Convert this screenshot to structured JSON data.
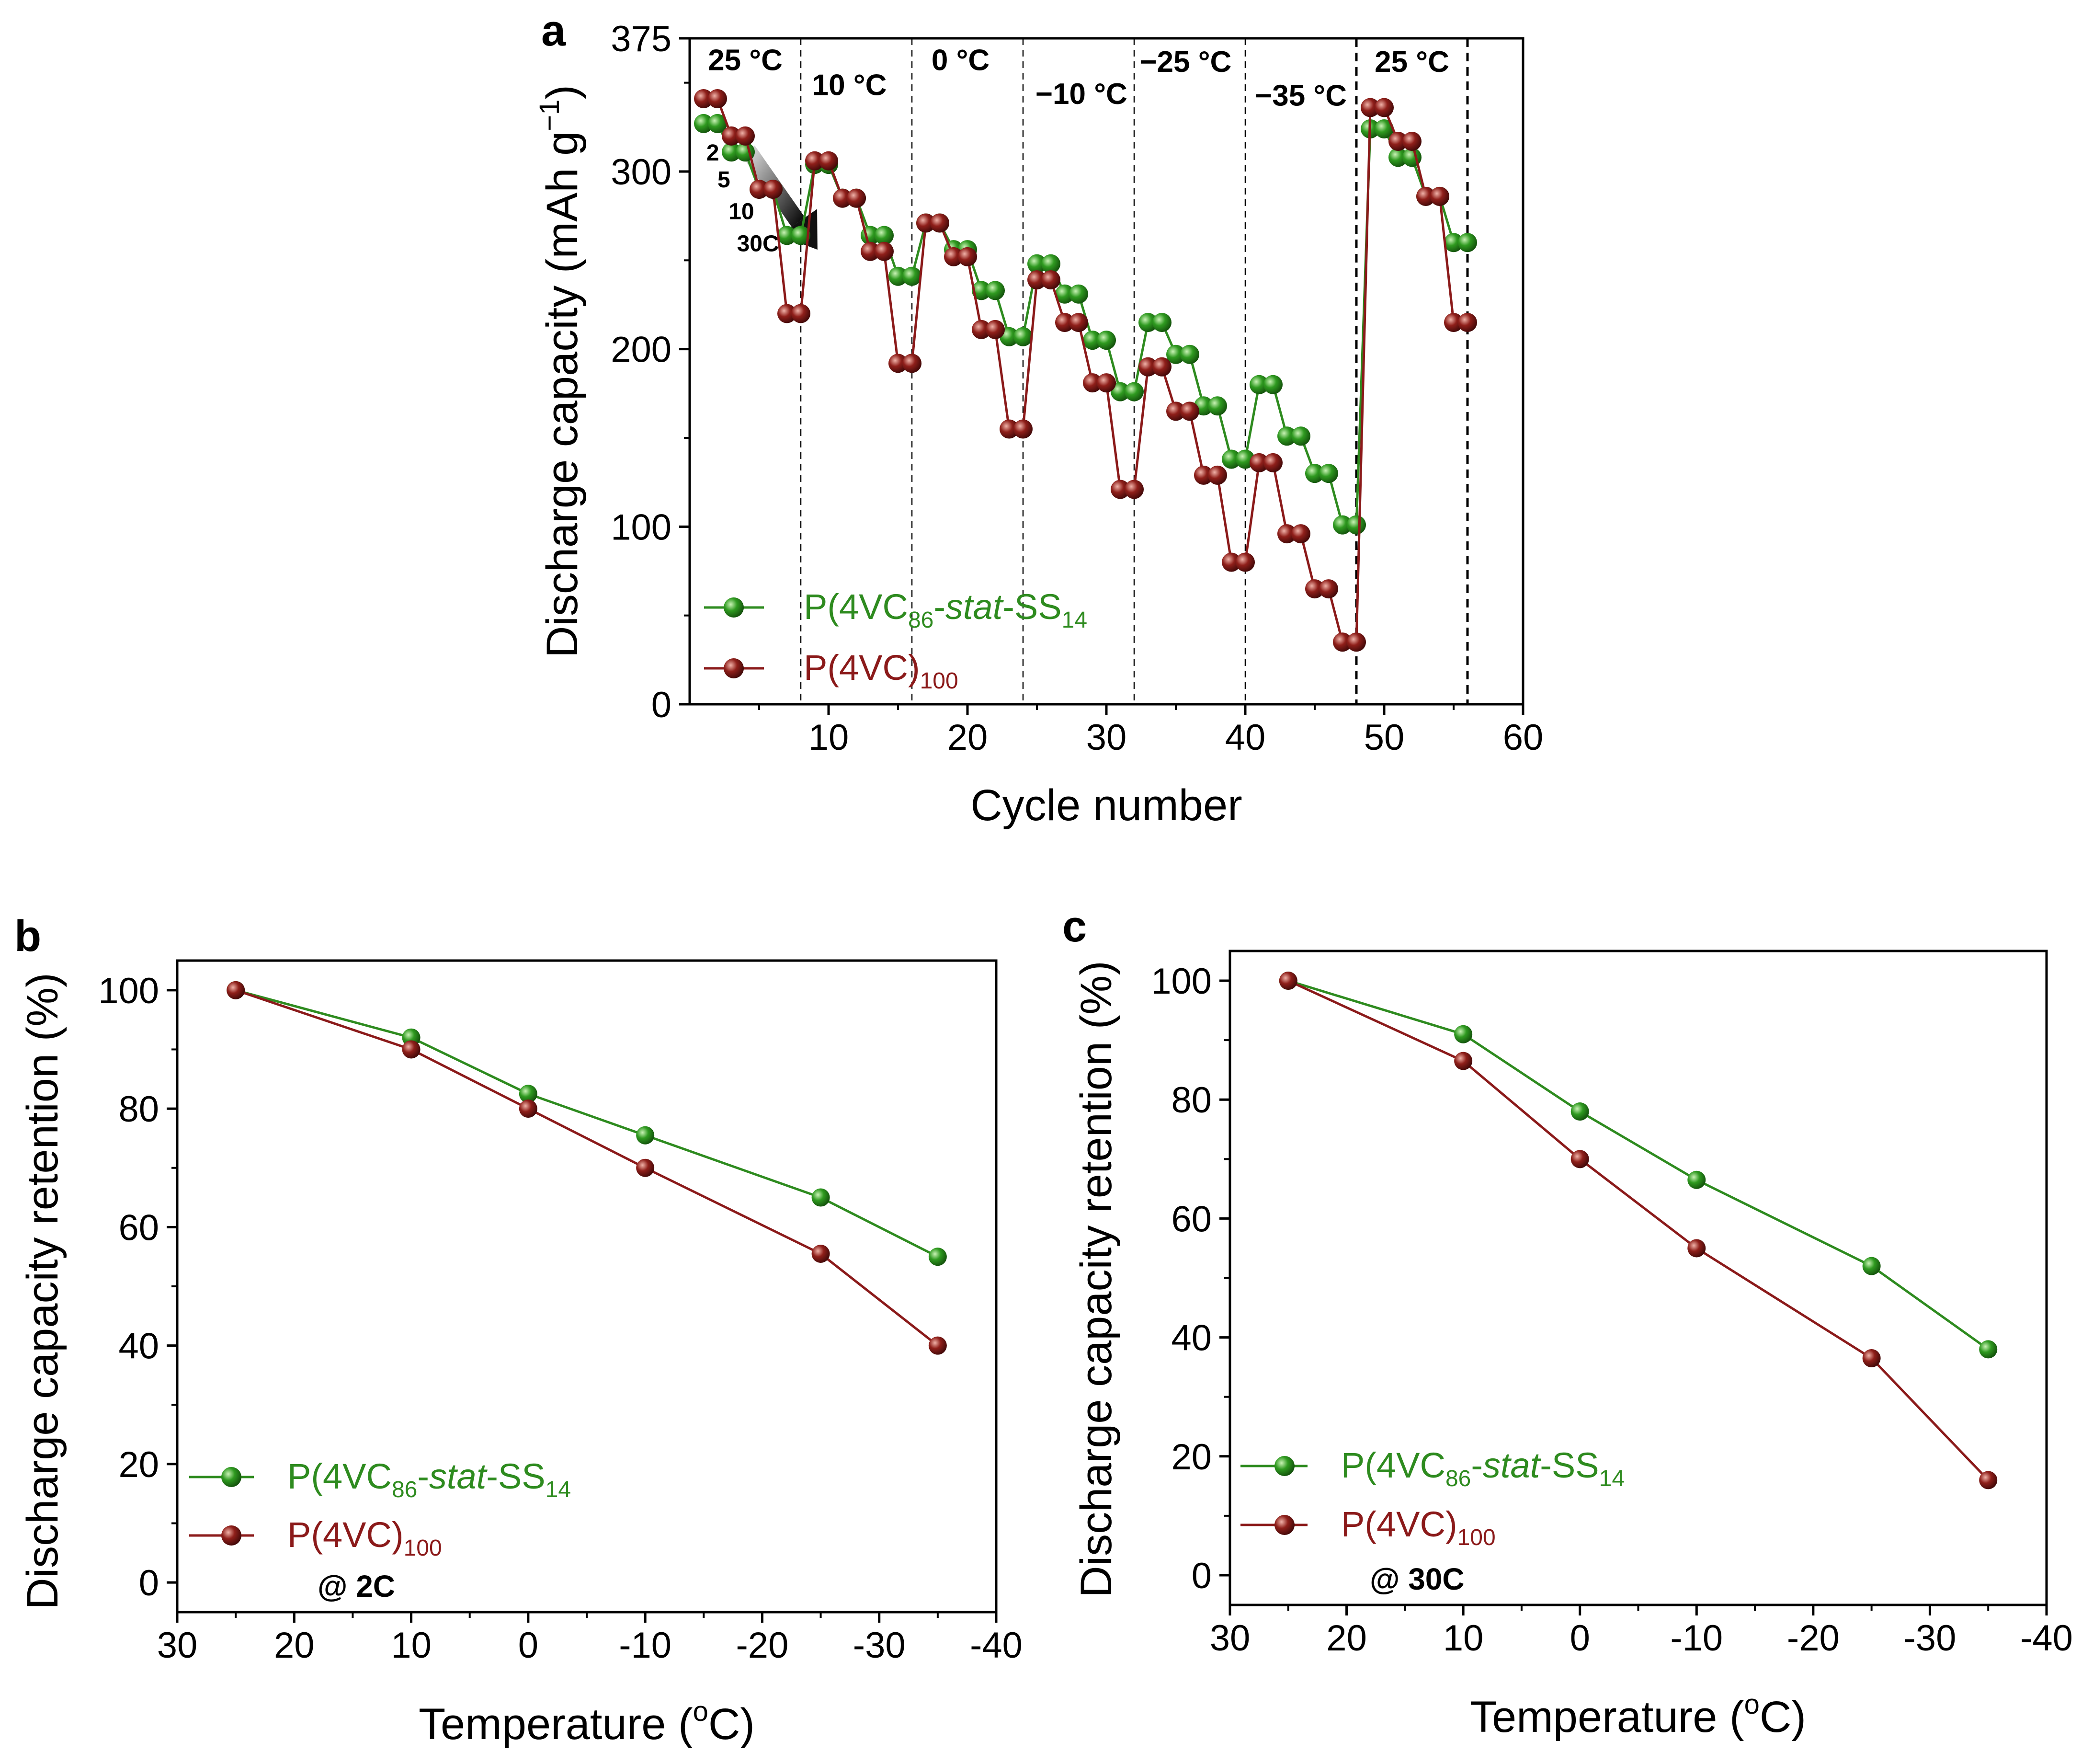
{
  "chart_data": [
    {
      "panel": "a",
      "type": "line",
      "xlabel": "Cycle number",
      "ylabel_main": "Discharge capacity (mAh g",
      "ylabel_sup": "−1",
      "ylabel_close": ")",
      "xlim": [
        0,
        60
      ],
      "ylim": [
        0,
        375
      ],
      "xticks": [
        10,
        20,
        30,
        40,
        50,
        60
      ],
      "yticks": [
        0,
        100,
        200,
        300,
        375
      ],
      "xtick_labels": [
        "10",
        "20",
        "30",
        "40",
        "50",
        "60"
      ],
      "ytick_labels": [
        "0",
        "100",
        "200",
        "300",
        "375"
      ],
      "dividers": [
        {
          "x": 8,
          "style": "dashed"
        },
        {
          "x": 16,
          "style": "dashed"
        },
        {
          "x": 24,
          "style": "dashed"
        },
        {
          "x": 32,
          "style": "dashed"
        },
        {
          "x": 40,
          "style": "dashed"
        },
        {
          "x": 48,
          "style": "bold-dashed"
        },
        {
          "x": 56,
          "style": "bold-dashed"
        }
      ],
      "temperature_labels": [
        {
          "text": "25 °C",
          "x": 4,
          "y": 363
        },
        {
          "text": "10 °C",
          "x": 11.5,
          "y": 349
        },
        {
          "text": "0 °C",
          "x": 19.5,
          "y": 363
        },
        {
          "text": "−10 °C",
          "x": 28.2,
          "y": 344
        },
        {
          "text": "−25 °C",
          "x": 35.7,
          "y": 362
        },
        {
          "text": "−35 °C",
          "x": 44,
          "y": 343
        },
        {
          "text": "25 °C",
          "x": 52,
          "y": 362
        }
      ],
      "rate_labels": [
        {
          "text": "2",
          "x": 1.2,
          "y": 311
        },
        {
          "text": "5",
          "x": 2.0,
          "y": 296
        },
        {
          "text": "10",
          "x": 2.8,
          "y": 278
        },
        {
          "text": "30C",
          "x": 3.4,
          "y": 260
        }
      ],
      "arrow": {
        "from": [
          4.2,
          312
        ],
        "to": [
          9.2,
          256
        ]
      },
      "series": [
        {
          "name_pre": "P(4VC",
          "name_sub1": "86",
          "name_mid": "-",
          "name_italic": "stat",
          "name_post": "-SS",
          "name_sub2": "14",
          "color": "#2e8b1f",
          "x": [
            1,
            2,
            3,
            4,
            5,
            6,
            7,
            8,
            9,
            10,
            11,
            12,
            13,
            14,
            15,
            16,
            17,
            18,
            19,
            20,
            21,
            22,
            23,
            24,
            25,
            26,
            27,
            28,
            29,
            30,
            31,
            32,
            33,
            34,
            35,
            36,
            37,
            38,
            39,
            40,
            41,
            42,
            43,
            44,
            45,
            46,
            47,
            48,
            49,
            50,
            51,
            52,
            53,
            54,
            55,
            56
          ],
          "values": [
            327,
            327,
            311,
            311,
            290,
            290,
            264,
            264,
            304,
            304,
            285,
            285,
            264,
            264,
            241,
            241,
            271,
            271,
            256,
            256,
            233,
            233,
            207,
            207,
            248,
            248,
            231,
            231,
            205,
            205,
            176,
            176,
            215,
            215,
            197,
            197,
            168,
            168,
            138,
            138,
            180,
            180,
            151,
            151,
            130,
            130,
            101,
            101,
            324,
            324,
            308,
            308,
            286,
            286,
            260,
            260
          ]
        },
        {
          "name_pre": "P(4VC)",
          "name_sub1": "100",
          "color": "#8b1a1a",
          "x": [
            1,
            2,
            3,
            4,
            5,
            6,
            7,
            8,
            9,
            10,
            11,
            12,
            13,
            14,
            15,
            16,
            17,
            18,
            19,
            20,
            21,
            22,
            23,
            24,
            25,
            26,
            27,
            28,
            29,
            30,
            31,
            32,
            33,
            34,
            35,
            36,
            37,
            38,
            39,
            40,
            41,
            42,
            43,
            44,
            45,
            46,
            47,
            48,
            49,
            50,
            51,
            52,
            53,
            54,
            55,
            56
          ],
          "values": [
            341,
            341,
            320,
            320,
            290,
            290,
            220,
            220,
            306,
            306,
            285,
            285,
            255,
            255,
            192,
            192,
            271,
            271,
            252,
            252,
            211,
            211,
            155,
            155,
            239,
            239,
            215,
            215,
            181,
            181,
            121,
            121,
            190,
            190,
            165,
            165,
            129,
            129,
            80,
            80,
            136,
            136,
            96,
            96,
            65,
            65,
            35,
            35,
            336,
            336,
            317,
            317,
            286,
            286,
            215,
            215
          ]
        }
      ]
    },
    {
      "panel": "b",
      "type": "line",
      "xlabel_pre": "Temperature (",
      "xlabel_sup": "o",
      "xlabel_post": "C)",
      "ylabel": "Discharge capacity retention (%)",
      "xlim": [
        30,
        -40
      ],
      "ylim": [
        -5,
        105
      ],
      "xticks": [
        30,
        20,
        10,
        0,
        -10,
        -20,
        -30,
        -40
      ],
      "yticks": [
        0,
        20,
        40,
        60,
        80,
        100
      ],
      "xtick_labels": [
        "30",
        "20",
        "10",
        "0",
        "-10",
        "-20",
        "-30",
        "-40"
      ],
      "ytick_labels": [
        "0",
        "20",
        "40",
        "60",
        "80",
        "100"
      ],
      "annotation": "@ 2C",
      "series": [
        {
          "color": "#2e8b1f",
          "x": [
            25,
            10,
            0,
            -10,
            -25,
            -35
          ],
          "values": [
            100,
            92,
            82.5,
            75.5,
            65,
            55
          ]
        },
        {
          "color": "#8b1a1a",
          "x": [
            25,
            10,
            0,
            -10,
            -25,
            -35
          ],
          "values": [
            100,
            90,
            80,
            70,
            55.5,
            40
          ]
        }
      ]
    },
    {
      "panel": "c",
      "type": "line",
      "xlabel_pre": "Temperature (",
      "xlabel_sup": "o",
      "xlabel_post": "C)",
      "ylabel": "Discharge capacity retention (%)",
      "xlim": [
        30,
        -40
      ],
      "ylim": [
        -5,
        105
      ],
      "xticks": [
        30,
        20,
        10,
        0,
        -10,
        -20,
        -30,
        -40
      ],
      "yticks": [
        0,
        20,
        40,
        60,
        80,
        100
      ],
      "xtick_labels": [
        "30",
        "20",
        "10",
        "0",
        "-10",
        "-20",
        "-30",
        "-40"
      ],
      "ytick_labels": [
        "0",
        "20",
        "40",
        "60",
        "80",
        "100"
      ],
      "annotation": "@ 30C",
      "series": [
        {
          "color": "#2e8b1f",
          "x": [
            25,
            10,
            0,
            -10,
            -25,
            -35
          ],
          "values": [
            100,
            91,
            78,
            66.5,
            52,
            38
          ]
        },
        {
          "color": "#8b1a1a",
          "x": [
            25,
            10,
            0,
            -10,
            -25,
            -35
          ],
          "values": [
            100,
            86.5,
            70,
            55,
            36.5,
            16
          ]
        }
      ]
    }
  ]
}
